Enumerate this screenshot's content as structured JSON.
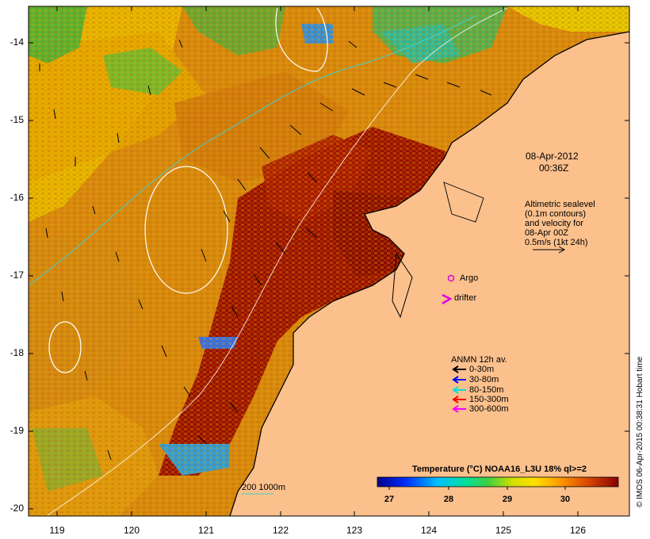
{
  "map": {
    "date_label": "08-Apr-2012",
    "time_label": "00:36Z",
    "altimetry": {
      "line1": "Altimetric sealevel",
      "line2": "(0.1m contours)",
      "line3": "and velocity for",
      "line4": "08-Apr 00Z",
      "line5": "0.5m/s (1kt 24h)"
    },
    "argo_label": "Argo",
    "drifter_label": "drifter",
    "anmn": {
      "title": "ANMN 12h av.",
      "items": [
        {
          "label": "0-30m",
          "color": "#000000"
        },
        {
          "label": "30-80m",
          "color": "#0000ff"
        },
        {
          "label": "80-150m",
          "color": "#00e0e0"
        },
        {
          "label": "150-300m",
          "color": "#ff0000"
        },
        {
          "label": "300-600m",
          "color": "#ff00ff"
        }
      ]
    },
    "depth_legend": "200  1000m",
    "colorbar": {
      "title": "Temperature (°C) NOAA16_L3U 18% ql>=2",
      "ticks": [
        "27",
        "28",
        "29",
        "30"
      ]
    },
    "credit": "© IMOS 06-Apr-2015 00:38:31 Hobart time",
    "y_axis": [
      "-14",
      "-15",
      "-16",
      "-17",
      "-18",
      "-19",
      "-20"
    ],
    "x_axis": [
      "119",
      "120",
      "121",
      "122",
      "123",
      "124",
      "125",
      "126"
    ]
  }
}
